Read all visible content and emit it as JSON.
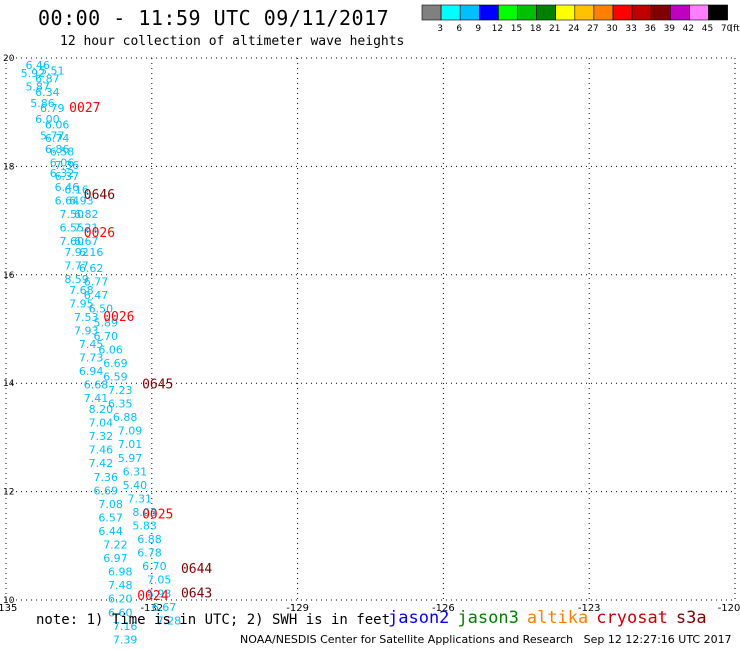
{
  "header": {
    "title": "00:00 - 11:59 UTC 09/11/2017",
    "subtitle": "12 hour collection of altimeter wave heights"
  },
  "colorbar": {
    "labels": [
      "3",
      "6",
      "9",
      "12",
      "15",
      "18",
      "21",
      "24",
      "27",
      "30",
      "33",
      "36",
      "39",
      "42",
      "45",
      "70"
    ],
    "unit": "(ft)",
    "colors": [
      "#808080",
      "#00ffff",
      "#00c0ff",
      "#0000ff",
      "#00ff00",
      "#00c000",
      "#008000",
      "#ffff00",
      "#ffc000",
      "#ff8000",
      "#ff0000",
      "#c00000",
      "#800000",
      "#c000c0",
      "#ff80ff",
      "#000000"
    ]
  },
  "footer": {
    "note": "note: 1) Time is in UTC; 2) SWH is in feet",
    "satellites": [
      {
        "name": "jason2",
        "color": "#0000ff"
      },
      {
        "name": "jason3",
        "color": "#008000"
      },
      {
        "name": "altika",
        "color": "#ff8000"
      },
      {
        "name": "cryosat",
        "color": "#cc0000"
      },
      {
        "name": "s3a",
        "color": "#800000"
      }
    ],
    "credit_left": "NOAA/NESDIS Center for Satellite Applications and Research",
    "credit_right": "Sep 12 12:27:16 UTC 2017"
  },
  "chart_data": {
    "type": "scatter",
    "xlim": [
      -135,
      -120
    ],
    "ylim": [
      10,
      20
    ],
    "x_ticks": [
      "-135",
      "-132",
      "-129",
      "-126",
      "-123",
      "-120"
    ],
    "y_ticks": [
      "10",
      "12",
      "14",
      "16",
      "18",
      "20"
    ],
    "grid": true,
    "points": [
      {
        "lon": -134.6,
        "lat": 19.8,
        "label": "6.46",
        "color": "#00c0ff"
      },
      {
        "lon": -134.3,
        "lat": 19.7,
        "label": "5.51",
        "color": "#00c0ff"
      },
      {
        "lon": -134.7,
        "lat": 19.65,
        "label": "5.92",
        "color": "#00c0ff"
      },
      {
        "lon": -134.4,
        "lat": 19.55,
        "label": "6.87",
        "color": "#00c0ff"
      },
      {
        "lon": -134.6,
        "lat": 19.4,
        "label": "5.87",
        "color": "#00c0ff"
      },
      {
        "lon": -134.4,
        "lat": 19.3,
        "label": "6.34",
        "color": "#00c0ff"
      },
      {
        "lon": -134.5,
        "lat": 19.1,
        "label": "5.86",
        "color": "#00c0ff"
      },
      {
        "lon": -134.3,
        "lat": 19.0,
        "label": "6.79",
        "color": "#00c0ff"
      },
      {
        "lon": -134.4,
        "lat": 18.8,
        "label": "6.00",
        "color": "#00c0ff"
      },
      {
        "lon": -134.2,
        "lat": 18.7,
        "label": "6.06",
        "color": "#00c0ff"
      },
      {
        "lon": -134.3,
        "lat": 18.5,
        "label": "5.77",
        "color": "#00c0ff"
      },
      {
        "lon": -134.2,
        "lat": 18.45,
        "label": "6.74",
        "color": "#00c0ff"
      },
      {
        "lon": -134.2,
        "lat": 18.25,
        "label": "6.86",
        "color": "#00c0ff"
      },
      {
        "lon": -134.1,
        "lat": 18.2,
        "label": "6.58",
        "color": "#00c0ff"
      },
      {
        "lon": -134.1,
        "lat": 18.0,
        "label": "6.06",
        "color": "#00c0ff"
      },
      {
        "lon": -134.0,
        "lat": 17.95,
        "label": "7.36",
        "color": "#00c0ff"
      },
      {
        "lon": -134.1,
        "lat": 17.8,
        "label": "6.32",
        "color": "#00c0ff"
      },
      {
        "lon": -134.0,
        "lat": 17.75,
        "label": "6.37",
        "color": "#00c0ff"
      },
      {
        "lon": -134.0,
        "lat": 17.55,
        "label": "6.46",
        "color": "#00c0ff"
      },
      {
        "lon": -133.8,
        "lat": 17.5,
        "label": "6.16",
        "color": "#00c0ff"
      },
      {
        "lon": -134.0,
        "lat": 17.3,
        "label": "6.64",
        "color": "#00c0ff"
      },
      {
        "lon": -133.7,
        "lat": 17.3,
        "label": "6.93",
        "color": "#00c0ff"
      },
      {
        "lon": -133.9,
        "lat": 17.05,
        "label": "7.50",
        "color": "#00c0ff"
      },
      {
        "lon": -133.6,
        "lat": 17.05,
        "label": "6.82",
        "color": "#00c0ff"
      },
      {
        "lon": -133.9,
        "lat": 16.8,
        "label": "6.55",
        "color": "#00c0ff"
      },
      {
        "lon": -133.6,
        "lat": 16.8,
        "label": "7.21",
        "color": "#00c0ff"
      },
      {
        "lon": -133.9,
        "lat": 16.55,
        "label": "7.60",
        "color": "#00c0ff"
      },
      {
        "lon": -133.6,
        "lat": 16.55,
        "label": "6.67",
        "color": "#00c0ff"
      },
      {
        "lon": -133.8,
        "lat": 16.35,
        "label": "7.92",
        "color": "#00c0ff"
      },
      {
        "lon": -133.5,
        "lat": 16.35,
        "label": "6.16",
        "color": "#00c0ff"
      },
      {
        "lon": -133.8,
        "lat": 16.1,
        "label": "7.77",
        "color": "#00c0ff"
      },
      {
        "lon": -133.5,
        "lat": 16.05,
        "label": "6.62",
        "color": "#00c0ff"
      },
      {
        "lon": -133.8,
        "lat": 15.85,
        "label": "8.59",
        "color": "#00c0ff"
      },
      {
        "lon": -133.4,
        "lat": 15.8,
        "label": "6.77",
        "color": "#00c0ff"
      },
      {
        "lon": -133.7,
        "lat": 15.65,
        "label": "7.68",
        "color": "#00c0ff"
      },
      {
        "lon": -133.4,
        "lat": 15.55,
        "label": "6.47",
        "color": "#00c0ff"
      },
      {
        "lon": -133.7,
        "lat": 15.4,
        "label": "7.95",
        "color": "#00c0ff"
      },
      {
        "lon": -133.3,
        "lat": 15.3,
        "label": "6.50",
        "color": "#00c0ff"
      },
      {
        "lon": -133.6,
        "lat": 15.15,
        "label": "7.53",
        "color": "#00c0ff"
      },
      {
        "lon": -133.2,
        "lat": 15.05,
        "label": "5.89",
        "color": "#00c0ff"
      },
      {
        "lon": -133.6,
        "lat": 14.9,
        "label": "7.93",
        "color": "#00c0ff"
      },
      {
        "lon": -133.2,
        "lat": 14.8,
        "label": "6.70",
        "color": "#00c0ff"
      },
      {
        "lon": -133.5,
        "lat": 14.65,
        "label": "7.45",
        "color": "#00c0ff"
      },
      {
        "lon": -133.1,
        "lat": 14.55,
        "label": "6.06",
        "color": "#00c0ff"
      },
      {
        "lon": -133.5,
        "lat": 14.4,
        "label": "7.73",
        "color": "#00c0ff"
      },
      {
        "lon": -133.0,
        "lat": 14.3,
        "label": "6.69",
        "color": "#00c0ff"
      },
      {
        "lon": -133.5,
        "lat": 14.15,
        "label": "6.94",
        "color": "#00c0ff"
      },
      {
        "lon": -133.0,
        "lat": 14.05,
        "label": "6.59",
        "color": "#00c0ff"
      },
      {
        "lon": -133.4,
        "lat": 13.9,
        "label": "6.68",
        "color": "#00c0ff"
      },
      {
        "lon": -132.9,
        "lat": 13.8,
        "label": "7.23",
        "color": "#00c0ff"
      },
      {
        "lon": -133.4,
        "lat": 13.65,
        "label": "7.41",
        "color": "#00c0ff"
      },
      {
        "lon": -132.9,
        "lat": 13.55,
        "label": "6.35",
        "color": "#00c0ff"
      },
      {
        "lon": -133.3,
        "lat": 13.45,
        "label": "8.20",
        "color": "#00c0ff"
      },
      {
        "lon": -132.8,
        "lat": 13.3,
        "label": "6.88",
        "color": "#00c0ff"
      },
      {
        "lon": -133.3,
        "lat": 13.2,
        "label": "7.04",
        "color": "#00c0ff"
      },
      {
        "lon": -132.7,
        "lat": 13.05,
        "label": "7.09",
        "color": "#00c0ff"
      },
      {
        "lon": -133.3,
        "lat": 12.95,
        "label": "7.32",
        "color": "#00c0ff"
      },
      {
        "lon": -132.7,
        "lat": 12.8,
        "label": "7.01",
        "color": "#00c0ff"
      },
      {
        "lon": -133.3,
        "lat": 12.7,
        "label": "7.46",
        "color": "#00c0ff"
      },
      {
        "lon": -132.7,
        "lat": 12.55,
        "label": "5.97",
        "color": "#00c0ff"
      },
      {
        "lon": -133.3,
        "lat": 12.45,
        "label": "7.42",
        "color": "#00c0ff"
      },
      {
        "lon": -132.6,
        "lat": 12.3,
        "label": "6.31",
        "color": "#00c0ff"
      },
      {
        "lon": -133.2,
        "lat": 12.2,
        "label": "7.36",
        "color": "#00c0ff"
      },
      {
        "lon": -132.6,
        "lat": 12.05,
        "label": "5.40",
        "color": "#00c0ff"
      },
      {
        "lon": -133.2,
        "lat": 11.95,
        "label": "6.69",
        "color": "#00c0ff"
      },
      {
        "lon": -132.5,
        "lat": 11.8,
        "label": "7.31",
        "color": "#00c0ff"
      },
      {
        "lon": -133.1,
        "lat": 11.7,
        "label": "7.08",
        "color": "#00c0ff"
      },
      {
        "lon": -132.4,
        "lat": 11.55,
        "label": "8.03",
        "color": "#00c0ff"
      },
      {
        "lon": -133.1,
        "lat": 11.45,
        "label": "6.57",
        "color": "#00c0ff"
      },
      {
        "lon": -132.4,
        "lat": 11.3,
        "label": "5.83",
        "color": "#00c0ff"
      },
      {
        "lon": -133.1,
        "lat": 11.2,
        "label": "6.44",
        "color": "#00c0ff"
      },
      {
        "lon": -132.3,
        "lat": 11.05,
        "label": "6.88",
        "color": "#00c0ff"
      },
      {
        "lon": -133.0,
        "lat": 10.95,
        "label": "7.22",
        "color": "#00c0ff"
      },
      {
        "lon": -132.3,
        "lat": 10.8,
        "label": "6.78",
        "color": "#00c0ff"
      },
      {
        "lon": -133.0,
        "lat": 10.7,
        "label": "6.97",
        "color": "#00c0ff"
      },
      {
        "lon": -132.2,
        "lat": 10.55,
        "label": "6.70",
        "color": "#00c0ff"
      },
      {
        "lon": -132.9,
        "lat": 10.45,
        "label": "6.98",
        "color": "#00c0ff"
      },
      {
        "lon": -132.1,
        "lat": 10.3,
        "label": "7.05",
        "color": "#00c0ff"
      },
      {
        "lon": -132.9,
        "lat": 10.2,
        "label": "7.48",
        "color": "#00c0ff"
      },
      {
        "lon": -132.1,
        "lat": 10.05,
        "label": "5.93",
        "color": "#00c0ff"
      },
      {
        "lon": -132.9,
        "lat": 9.95,
        "label": "6.20",
        "color": "#00c0ff"
      },
      {
        "lon": -132.0,
        "lat": 9.8,
        "label": "6.67",
        "color": "#00c0ff"
      },
      {
        "lon": -132.9,
        "lat": 9.7,
        "label": "6.60",
        "color": "#00c0ff"
      },
      {
        "lon": -131.9,
        "lat": 9.55,
        "label": "7.28",
        "color": "#00c0ff"
      },
      {
        "lon": -132.8,
        "lat": 9.45,
        "label": "7.16",
        "color": "#00c0ff"
      },
      {
        "lon": -132.8,
        "lat": 9.2,
        "label": "7.39",
        "color": "#00c0ff"
      }
    ],
    "time_labels": [
      {
        "lon": -133.7,
        "lat": 19.0,
        "label": "0027",
        "color": "#ff0000"
      },
      {
        "lon": -133.4,
        "lat": 17.4,
        "label": "0646",
        "color": "#800000"
      },
      {
        "lon": -133.4,
        "lat": 16.7,
        "label": "0026",
        "color": "#ff0000"
      },
      {
        "lon": -133.0,
        "lat": 15.15,
        "label": "0026",
        "color": "#ff0000"
      },
      {
        "lon": -132.2,
        "lat": 13.9,
        "label": "0645",
        "color": "#800000"
      },
      {
        "lon": -132.2,
        "lat": 11.5,
        "label": "0025",
        "color": "#ff0000"
      },
      {
        "lon": -131.4,
        "lat": 10.5,
        "label": "0644",
        "color": "#800000"
      },
      {
        "lon": -132.3,
        "lat": 10.0,
        "label": "0024",
        "color": "#ff0000"
      },
      {
        "lon": -131.4,
        "lat": 10.05,
        "label": "0643",
        "color": "#800000"
      }
    ]
  }
}
